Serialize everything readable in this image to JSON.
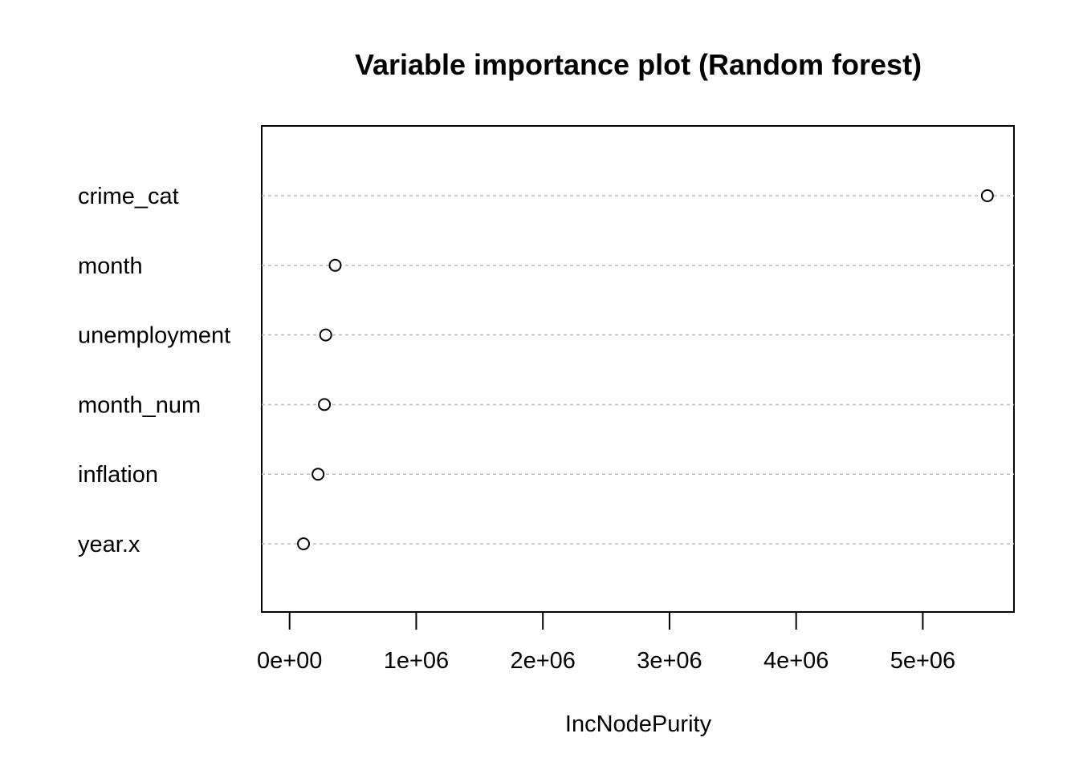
{
  "chart_data": {
    "type": "scatter",
    "title": "Variable importance plot (Random forest)",
    "xlabel": "IncNodePurity",
    "ylabel": "",
    "categories": [
      "crime_cat",
      "month",
      "unemployment",
      "month_num",
      "inflation",
      "year.x"
    ],
    "series": [
      {
        "values": [
          5510000,
          360000,
          285000,
          275000,
          225000,
          110000
        ]
      }
    ],
    "x_ticks": [
      0,
      1000000,
      2000000,
      3000000,
      4000000,
      5000000
    ],
    "x_tick_labels": [
      "0e+00",
      "1e+06",
      "2e+06",
      "3e+06",
      "4e+06",
      "5e+06"
    ],
    "xlim": [
      -220000,
      5720000
    ],
    "grid": "dotted horizontal lines per category",
    "legend": "none",
    "colors": {
      "point": "#000000",
      "grid": "#bebebe",
      "frame": "#000000"
    }
  }
}
